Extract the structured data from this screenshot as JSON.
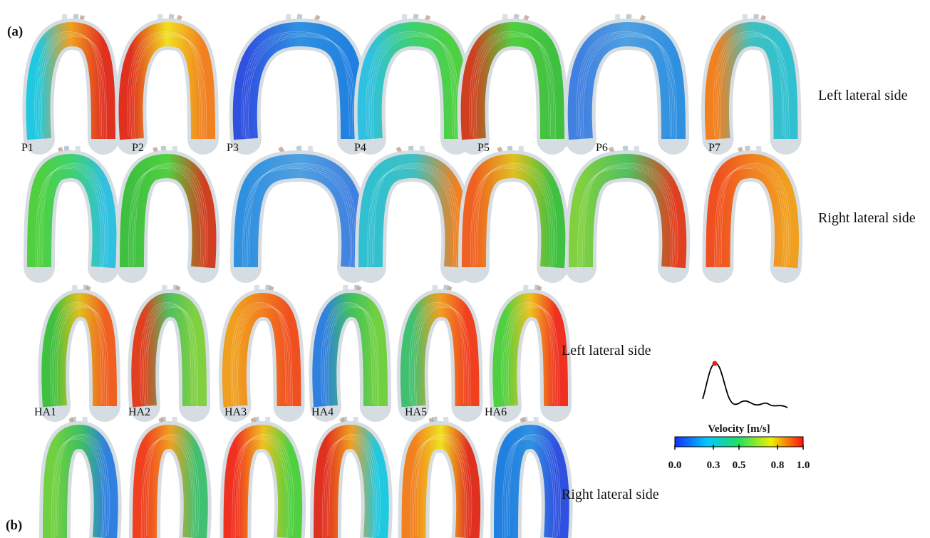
{
  "panels": [
    {
      "label": "(a)",
      "cases": [
        "P1",
        "P2",
        "P3",
        "P4",
        "P5",
        "P6",
        "P7"
      ],
      "views": [
        "Left lateral side",
        "Right lateral side"
      ]
    },
    {
      "label": "(b)",
      "cases": [
        "HA1",
        "HA2",
        "HA3",
        "HA4",
        "HA5",
        "HA6"
      ],
      "views": [
        "Left lateral side",
        "Right lateral side"
      ]
    }
  ],
  "colorbar": {
    "title": "Velocity [m/s]",
    "ticks": [
      {
        "value": 0,
        "label": "0.0"
      },
      0.3,
      0.5,
      0.8,
      {
        "value": 1,
        "label": "1.0"
      }
    ]
  }
}
